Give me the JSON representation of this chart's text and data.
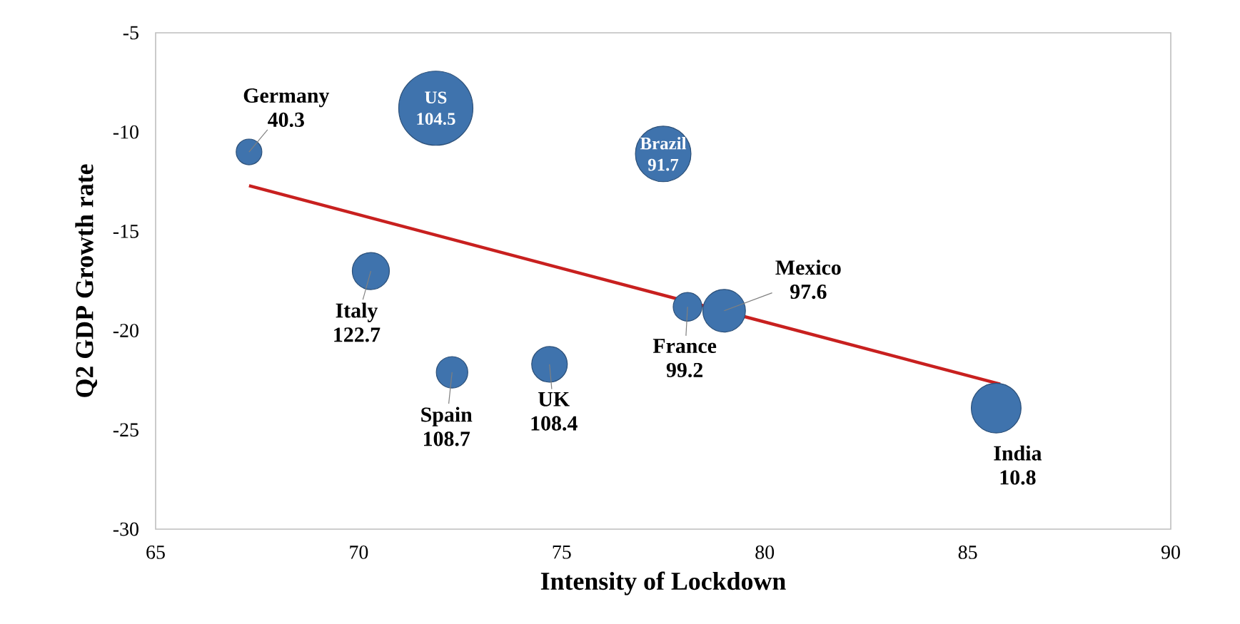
{
  "chart_data": {
    "type": "bubble",
    "xlabel": "Intensity of Lockdown",
    "ylabel": "Q2 GDP Growth  rate",
    "xlim": [
      65,
      90
    ],
    "xticks": [
      65,
      70,
      75,
      80,
      85,
      90
    ],
    "ylim": [
      -30,
      -5
    ],
    "yticks": [
      -30,
      -25,
      -20,
      -15,
      -10,
      -5
    ],
    "series": [
      {
        "name": "Germany",
        "color": "#3f73ad",
        "x": [
          67.3
        ],
        "values": [
          -11.0
        ],
        "sizes": [
          0.12
        ]
      },
      {
        "name": "US",
        "color": "#3f73ad",
        "x": [
          71.9
        ],
        "values": [
          -8.8
        ],
        "sizes": [
          1
        ]
      },
      {
        "name": "Brazil",
        "color": "#3f73ad",
        "x": [
          77.5
        ],
        "values": [
          -11.1
        ],
        "sizes": [
          0.56
        ]
      },
      {
        "name": "Italy",
        "color": "#3f73ad",
        "x": [
          70.3
        ],
        "values": [
          -17.0
        ],
        "sizes": [
          0.25
        ]
      },
      {
        "name": "Spain",
        "color": "#3f73ad",
        "x": [
          72.3
        ],
        "values": [
          -22.1
        ],
        "sizes": [
          0.18
        ]
      },
      {
        "name": "UK",
        "color": "#3f73ad",
        "x": [
          74.7
        ],
        "values": [
          -21.7
        ],
        "sizes": [
          0.23
        ]
      },
      {
        "name": "France",
        "color": "#3f73ad",
        "x": [
          78.1
        ],
        "values": [
          -18.8
        ],
        "sizes": [
          0.15
        ]
      },
      {
        "name": "Mexico",
        "color": "#3f73ad",
        "x": [
          79.0
        ],
        "values": [
          -19.0
        ],
        "sizes": [
          0.33
        ]
      },
      {
        "name": "India",
        "color": "#3f73ad",
        "x": [
          85.7
        ],
        "values": [
          -23.9
        ],
        "sizes": [
          0.45
        ]
      },
      {
        "type": "line",
        "color": "#c8201f",
        "x": [
          67.3,
          85.8
        ],
        "values": [
          -12.7,
          -22.7
        ]
      }
    ],
    "annotations": [
      {
        "text": "40.3",
        "x": 67.3,
        "y": -11.0
      },
      {
        "text": "104.5",
        "x": 71.9,
        "y": -8.8
      },
      {
        "text": "91.7",
        "x": 77.5,
        "y": -11.1
      },
      {
        "text": "122.7",
        "x": 70.3,
        "y": -17.0
      },
      {
        "text": "108.7",
        "x": 72.3,
        "y": -22.1
      },
      {
        "text": "108.4",
        "x": 74.7,
        "y": -21.7
      },
      {
        "text": "99.2",
        "x": 78.1,
        "y": -18.8
      },
      {
        "text": "97.6",
        "x": 79.0,
        "y": -19.0
      },
      {
        "text": "10.8",
        "x": 85.7,
        "y": -23.9
      }
    ]
  }
}
